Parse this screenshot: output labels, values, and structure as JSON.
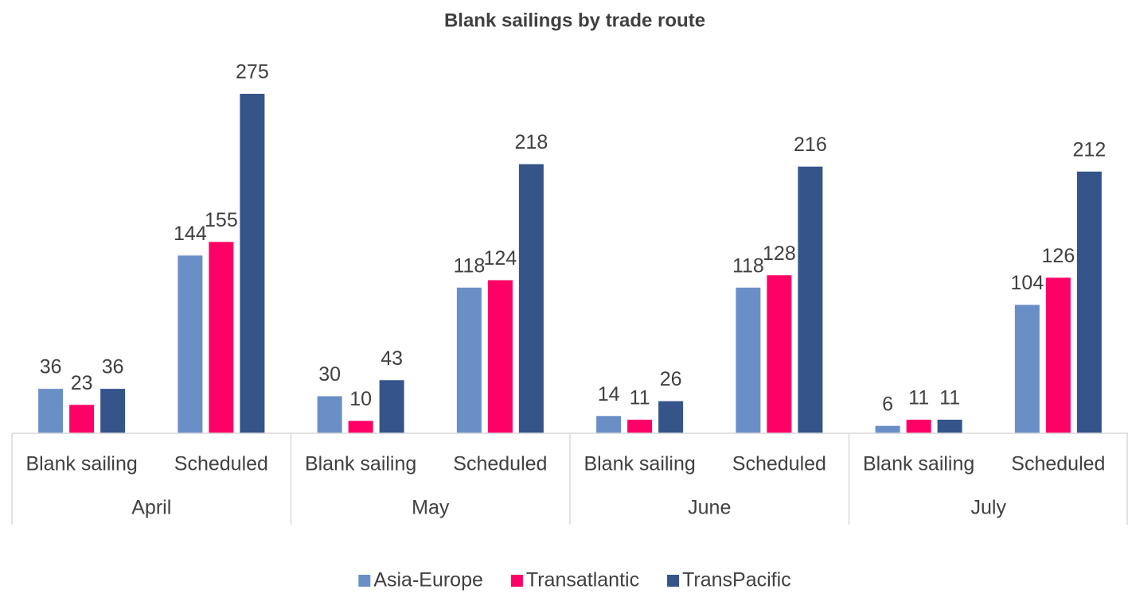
{
  "chart_data": {
    "type": "bar",
    "title": "Blank sailings by trade route",
    "categories": [
      "Blank sailing",
      "Scheduled",
      "Blank sailing",
      "Scheduled",
      "Blank sailing",
      "Scheduled",
      "Blank sailing",
      "Scheduled"
    ],
    "category_groups": [
      "April",
      "May",
      "June",
      "July"
    ],
    "series": [
      {
        "name": "Asia-Europe",
        "color": "#6a8fc7",
        "values": [
          36,
          144,
          30,
          118,
          14,
          118,
          6,
          104
        ]
      },
      {
        "name": "Transatlantic",
        "color": "#ff0066",
        "values": [
          23,
          155,
          10,
          124,
          11,
          128,
          11,
          126
        ]
      },
      {
        "name": "TransPacific",
        "color": "#34548a",
        "values": [
          36,
          275,
          43,
          218,
          26,
          216,
          11,
          212
        ]
      }
    ],
    "legend": "bottom"
  }
}
